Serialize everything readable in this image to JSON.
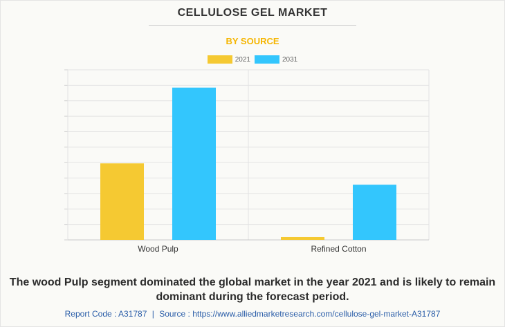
{
  "chart_data": {
    "type": "bar",
    "title": "CELLULOSE GEL MARKET",
    "subtitle": "BY SOURCE",
    "categories": [
      "Wood Pulp",
      "Refined Cotton"
    ],
    "series": [
      {
        "name": "2021",
        "values": [
          49.5,
          1.8
        ]
      },
      {
        "name": "2031",
        "values": [
          98.5,
          35.7
        ]
      }
    ],
    "ylim": [
      0,
      110
    ],
    "ytick_step": 10,
    "show_y_labels": false,
    "grid": true,
    "legend_position": "top-center",
    "colors": {
      "2021": "#f5c932",
      "2031": "#33c6fd"
    }
  },
  "footer": {
    "summary": "The wood Pulp segment dominated the global market in the year 2021 and is likely to remain dominant during the forecast period.",
    "report_code": "Report Code : A31787",
    "separator": "|",
    "source": "Source : https://www.alliedmarketresearch.com/cellulose-gel-market-A31787"
  }
}
